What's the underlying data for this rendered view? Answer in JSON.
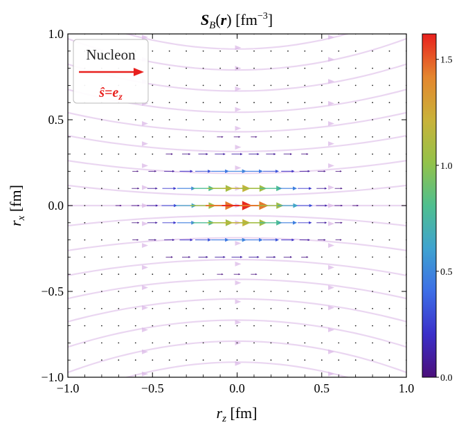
{
  "chart_data": {
    "type": "vector-field",
    "title": "S_B(r) [fm−3]",
    "title_parts": {
      "main": "S",
      "sub": "B",
      "arg_open": "(",
      "arg": "r",
      "arg_close": ")",
      "unit": " [fm",
      "unit_exp": "−3",
      "unit_close": "]"
    },
    "xlabel": "r_z [fm]",
    "xlabel_parts": {
      "var": "r",
      "sub": "z",
      "unit": " [fm]"
    },
    "ylabel": "r_x [fm]",
    "ylabel_parts": {
      "var": "r",
      "sub": "x",
      "unit": " [fm]"
    },
    "xlim": [
      -1.0,
      1.0
    ],
    "ylim": [
      -1.0,
      1.0
    ],
    "xticks": [
      "−1.0",
      "−0.5",
      "0.0",
      "0.5",
      "1.0"
    ],
    "yticks": [
      "−1.0",
      "−0.5",
      "0.0",
      "0.5",
      "1.0"
    ],
    "xtick_values": [
      -1.0,
      -0.5,
      0.0,
      0.5,
      1.0
    ],
    "ytick_values": [
      -1.0,
      -0.5,
      0.0,
      0.5,
      1.0
    ],
    "colorbar": {
      "range": [
        0.0,
        1.62
      ],
      "ticks": [
        "0.0",
        "0.5",
        "1.0",
        "1.5"
      ],
      "tick_values": [
        0.0,
        0.5,
        1.0,
        1.5
      ],
      "colormap": [
        "#4b0f7a",
        "#3b2fc9",
        "#3d6ee6",
        "#3fa3d0",
        "#4fbf8f",
        "#93c24a",
        "#c9b23a",
        "#e4862e",
        "#e8201e"
      ]
    },
    "field": {
      "grid_step": 0.1,
      "peak_value": 1.6,
      "sigma_z": 0.22,
      "sigma_x": 0.13,
      "direction": "+z"
    },
    "streamline_color": "#d8b4e6",
    "legend": {
      "title": "Nucleon",
      "label": "ŝ=e_z",
      "label_parts": {
        "s": "ŝ",
        "eq": "=",
        "e": "e",
        "sub": "z"
      },
      "arrow_color": "#e8201e",
      "placement": "top-left"
    }
  }
}
